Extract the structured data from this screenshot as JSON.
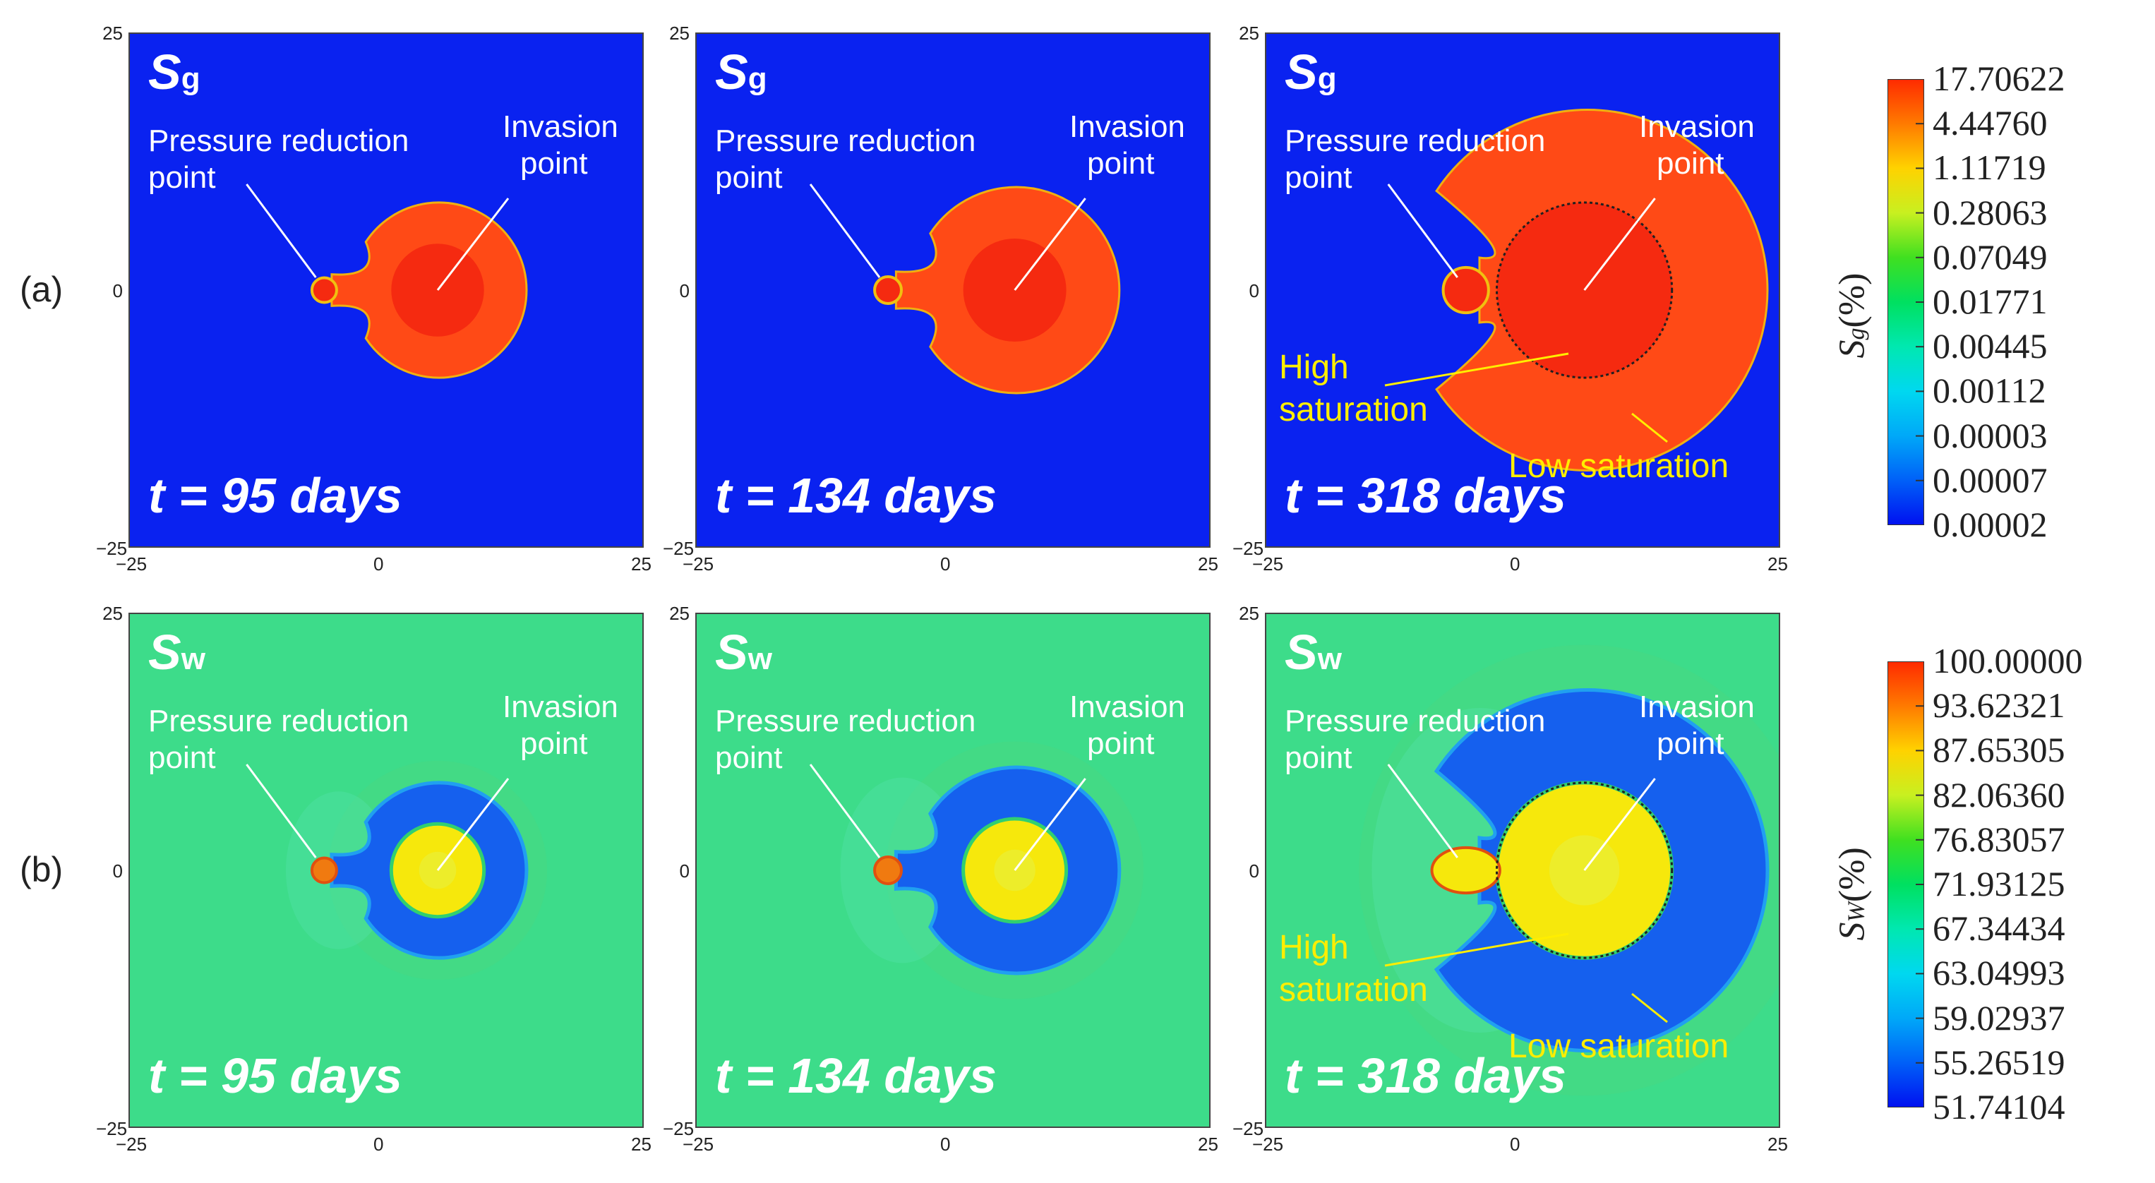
{
  "rows": [
    {
      "label": "(a)",
      "field": "Sg",
      "sym": "S",
      "sub": "g"
    },
    {
      "label": "(b)",
      "field": "Sw",
      "sym": "S",
      "sub": "w"
    }
  ],
  "panels": [
    {
      "time": "t = 95 days",
      "stage": 1
    },
    {
      "time": "t = 134 days",
      "stage": 2
    },
    {
      "time": "t = 318 days",
      "stage": 3
    }
  ],
  "annotations": {
    "pressure_point": "Pressure reduction",
    "pressure_point2": "point",
    "invasion_point": "Invasion",
    "invasion_point2": "point",
    "high": "High",
    "high2": "saturation",
    "low": "Low saturation"
  },
  "axis": {
    "ticks_x": [
      "−25",
      "0",
      "25"
    ],
    "ticks_y": [
      "25",
      "0",
      "−25"
    ]
  },
  "colors": {
    "sg_background": "#0a22f0",
    "sg_plume": "#ff4a16",
    "sg_core": "#f52a10",
    "sw_background": "#3ddc8a",
    "sw_ring": "#1560ee",
    "sw_core": "#f6e80c",
    "sw_point": "#f07a10",
    "annotation_yellow": "#ffee00"
  },
  "colorbars": [
    {
      "title_sym": "S",
      "title_sub": "g",
      "title_unit": "(%)",
      "labels": [
        "17.70622",
        "4.44760",
        "1.11719",
        "0.28063",
        "0.07049",
        "0.01771",
        "0.00445",
        "0.00112",
        "0.00003",
        "0.00007",
        "0.00002"
      ],
      "colors": [
        "#ff2a00",
        "#ff7a00",
        "#ffd200",
        "#c8f020",
        "#40e020",
        "#00e060",
        "#00e8b0",
        "#00d8f0",
        "#00a8f8",
        "#0060f8",
        "#0010f0"
      ]
    },
    {
      "title_sym": "S",
      "title_sub": "W",
      "title_unit": "(%)",
      "labels": [
        "100.00000",
        "93.62321",
        "87.65305",
        "82.06360",
        "76.83057",
        "71.93125",
        "67.34434",
        "63.04993",
        "59.02937",
        "55.26519",
        "51.74104"
      ],
      "colors": [
        "#ff2a00",
        "#ff7a00",
        "#ffd200",
        "#c8f020",
        "#40e020",
        "#00e060",
        "#00e8b0",
        "#00d8f0",
        "#00a8f8",
        "#0060f8",
        "#0010f0"
      ]
    }
  ]
}
